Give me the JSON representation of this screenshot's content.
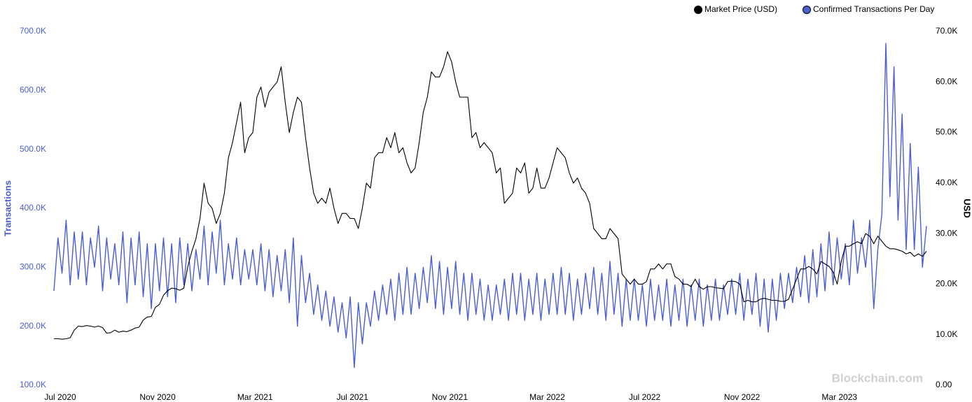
{
  "chart_data": {
    "type": "line",
    "y_label": "Transactions",
    "y2_label": "USD",
    "watermark": "Blockchain.com",
    "grid": false,
    "legend": "top-right",
    "categories": [
      "Jul 2020",
      null,
      null,
      null,
      null,
      null,
      null,
      null,
      null,
      null,
      null,
      null,
      null,
      null,
      null,
      null,
      null,
      null,
      null,
      null,
      null,
      null,
      null,
      null,
      "Nov 2020",
      null,
      null,
      null,
      null,
      null,
      null,
      null,
      null,
      null,
      null,
      null,
      null,
      null,
      null,
      null,
      null,
      null,
      null,
      null,
      null,
      null,
      null,
      null,
      "Mar 2021",
      null,
      null,
      null,
      null,
      null,
      null,
      null,
      null,
      null,
      null,
      null,
      null,
      null,
      null,
      null,
      null,
      null,
      null,
      null,
      null,
      null,
      null,
      null,
      "Jul 2021",
      null,
      null,
      null,
      null,
      null,
      null,
      null,
      null,
      null,
      null,
      null,
      null,
      null,
      null,
      null,
      null,
      null,
      null,
      null,
      null,
      null,
      null,
      null,
      "Nov 2021",
      null,
      null,
      null,
      null,
      null,
      null,
      null,
      null,
      null,
      null,
      null,
      null,
      null,
      null,
      null,
      null,
      null,
      null,
      null,
      null,
      null,
      null,
      null,
      "Mar 2022",
      null,
      null,
      null,
      null,
      null,
      null,
      null,
      null,
      null,
      null,
      null,
      null,
      null,
      null,
      null,
      null,
      null,
      null,
      null,
      null,
      null,
      null,
      null,
      "Jul 2022",
      null,
      null,
      null,
      null,
      null,
      null,
      null,
      null,
      null,
      null,
      null,
      null,
      null,
      null,
      null,
      null,
      null,
      null,
      null,
      null,
      null,
      null,
      null,
      "Nov 2022",
      null,
      null,
      null,
      null,
      null,
      null,
      null,
      null,
      null,
      null,
      null,
      null,
      null,
      null,
      null,
      null,
      null,
      null,
      null,
      null,
      null,
      null,
      null,
      "Mar 2023",
      null,
      null,
      null,
      null,
      null,
      null,
      null,
      null,
      null,
      null,
      null,
      null,
      null,
      null,
      null,
      null,
      null,
      null,
      null,
      null,
      null,
      null,
      null
    ],
    "series": [
      {
        "name": "Market Price (USD)",
        "color": "#000000",
        "axis": "y2",
        "values": [
          9200,
          9200,
          9100,
          9200,
          9400,
          10900,
          11700,
          11600,
          11800,
          11700,
          11500,
          11700,
          11400,
          10300,
          10400,
          10900,
          10500,
          10700,
          10600,
          10900,
          11300,
          11500,
          12900,
          13500,
          13600,
          15400,
          16000,
          17800,
          18700,
          19200,
          19100,
          18800,
          19200,
          23500,
          26500,
          29000,
          33000,
          40000,
          36000,
          35000,
          32000,
          34000,
          38000,
          45000,
          48000,
          52000,
          56000,
          46000,
          49000,
          50000,
          57000,
          59000,
          55000,
          58000,
          59000,
          60000,
          63000,
          56000,
          50000,
          54000,
          57000,
          56000,
          49000,
          43000,
          38000,
          36000,
          37000,
          36000,
          39000,
          35000,
          32000,
          34000,
          34000,
          33000,
          33000,
          31000,
          35000,
          40000,
          39000,
          45000,
          46000,
          46000,
          49000,
          47000,
          50000,
          46000,
          47000,
          44000,
          42000,
          43000,
          48000,
          54000,
          57000,
          62000,
          61000,
          61000,
          63000,
          66000,
          64000,
          60000,
          57000,
          57000,
          57000,
          49000,
          50000,
          47000,
          48000,
          47000,
          46000,
          42000,
          43000,
          36000,
          37000,
          38000,
          43000,
          42000,
          44000,
          38000,
          39000,
          43000,
          39000,
          39000,
          41000,
          44000,
          47000,
          46000,
          45000,
          42000,
          40000,
          41000,
          39000,
          38000,
          36000,
          31000,
          30000,
          29000,
          29000,
          31000,
          30000,
          29000,
          22000,
          21000,
          20000,
          21000,
          20000,
          20000,
          20500,
          23000,
          23000,
          24000,
          23000,
          24000,
          24000,
          21500,
          21000,
          20000,
          20000,
          19500,
          21000,
          19500,
          19000,
          19500,
          19500,
          19300,
          19200,
          19100,
          20500,
          20600,
          20500,
          20000,
          16500,
          16800,
          16500,
          16500,
          17000,
          17200,
          17000,
          16800,
          16800,
          16600,
          16600,
          17000,
          19000,
          21000,
          23000,
          23000,
          23500,
          23000,
          22000,
          24500,
          24000,
          23500,
          22400,
          20000,
          24500,
          27500,
          27500,
          28000,
          28400,
          28000,
          30000,
          29500,
          28000,
          29500,
          28500,
          27500,
          27000,
          27000,
          26800,
          26500,
          26000,
          26300,
          25500,
          26000,
          25500,
          26500
        ]
      },
      {
        "name": "Confirmed Transactions Per Day",
        "color": "#4a5fd6",
        "values": [
          260000,
          350000,
          290000,
          380000,
          270000,
          360000,
          280000,
          360000,
          270000,
          350000,
          300000,
          370000,
          260000,
          350000,
          280000,
          340000,
          270000,
          360000,
          240000,
          350000,
          270000,
          360000,
          250000,
          340000,
          230000,
          340000,
          260000,
          350000,
          250000,
          340000,
          240000,
          350000,
          270000,
          340000,
          260000,
          330000,
          280000,
          370000,
          270000,
          360000,
          290000,
          380000,
          270000,
          340000,
          280000,
          350000,
          270000,
          330000,
          280000,
          330000,
          270000,
          340000,
          260000,
          330000,
          250000,
          320000,
          260000,
          330000,
          240000,
          350000,
          200000,
          320000,
          240000,
          290000,
          220000,
          270000,
          210000,
          260000,
          200000,
          250000,
          190000,
          240000,
          180000,
          250000,
          130000,
          240000,
          170000,
          240000,
          200000,
          260000,
          210000,
          270000,
          220000,
          280000,
          210000,
          290000,
          220000,
          300000,
          220000,
          290000,
          230000,
          300000,
          240000,
          320000,
          230000,
          310000,
          220000,
          300000,
          230000,
          310000,
          220000,
          290000,
          210000,
          290000,
          220000,
          280000,
          210000,
          270000,
          210000,
          270000,
          220000,
          280000,
          210000,
          290000,
          220000,
          290000,
          210000,
          280000,
          220000,
          290000,
          210000,
          280000,
          220000,
          290000,
          220000,
          300000,
          220000,
          290000,
          210000,
          280000,
          220000,
          290000,
          230000,
          300000,
          220000,
          290000,
          210000,
          310000,
          220000,
          290000,
          200000,
          280000,
          210000,
          280000,
          210000,
          270000,
          200000,
          280000,
          210000,
          270000,
          210000,
          280000,
          200000,
          270000,
          210000,
          280000,
          200000,
          270000,
          210000,
          280000,
          200000,
          270000,
          210000,
          280000,
          210000,
          270000,
          220000,
          280000,
          220000,
          290000,
          210000,
          280000,
          220000,
          290000,
          200000,
          280000,
          190000,
          280000,
          210000,
          290000,
          230000,
          290000,
          240000,
          300000,
          250000,
          320000,
          240000,
          330000,
          250000,
          340000,
          260000,
          360000,
          270000,
          350000,
          280000,
          340000,
          270000,
          380000,
          290000,
          350000,
          300000,
          380000,
          230000,
          330000,
          390000,
          680000,
          420000,
          640000,
          380000,
          560000,
          330000,
          510000,
          330000,
          470000,
          300000,
          370000
        ]
      }
    ],
    "ylim": [
      100000,
      700000
    ],
    "yticks": [
      {
        "value": 100000,
        "label": "100.0K"
      },
      {
        "value": 200000,
        "label": "200.0K"
      },
      {
        "value": 300000,
        "label": "300.0K"
      },
      {
        "value": 400000,
        "label": "400.0K"
      },
      {
        "value": 500000,
        "label": "500.0K"
      },
      {
        "value": 600000,
        "label": "600.0K"
      },
      {
        "value": 700000,
        "label": "700.0K"
      }
    ],
    "y2lim": [
      0,
      70000
    ],
    "y2ticks": [
      {
        "value": 0,
        "label": "0.00"
      },
      {
        "value": 10000,
        "label": "10.0K"
      },
      {
        "value": 20000,
        "label": "20.0K"
      },
      {
        "value": 30000,
        "label": "30.0K"
      },
      {
        "value": 40000,
        "label": "40.0K"
      },
      {
        "value": 50000,
        "label": "50.0K"
      },
      {
        "value": 60000,
        "label": "60.0K"
      },
      {
        "value": 70000,
        "label": "70.0K"
      }
    ]
  }
}
